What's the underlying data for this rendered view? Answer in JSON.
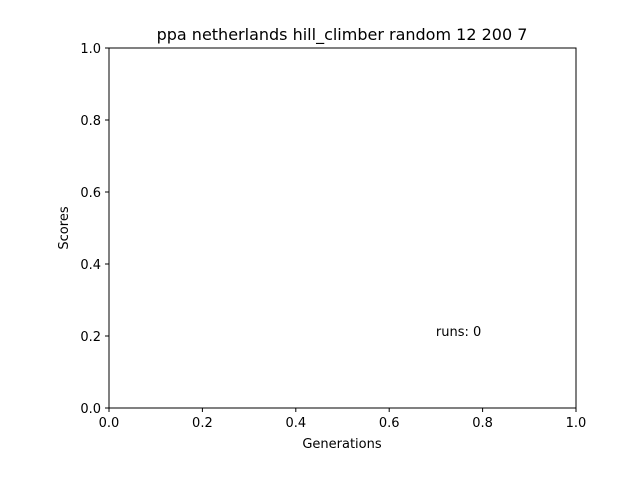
{
  "chart_data": {
    "type": "line",
    "title": "ppa netherlands hill_climber random 12 200 7",
    "xlabel": "Generations",
    "ylabel": "Scores",
    "xlim": [
      0.0,
      1.0
    ],
    "ylim": [
      0.0,
      1.0
    ],
    "xticks": [
      "0.0",
      "0.2",
      "0.4",
      "0.6",
      "0.8",
      "1.0"
    ],
    "yticks": [
      "0.0",
      "0.2",
      "0.4",
      "0.6",
      "0.8",
      "1.0"
    ],
    "grid": false,
    "series": [],
    "annotation": {
      "text": "runs: 0",
      "x": 0.7,
      "y": 0.2
    }
  }
}
